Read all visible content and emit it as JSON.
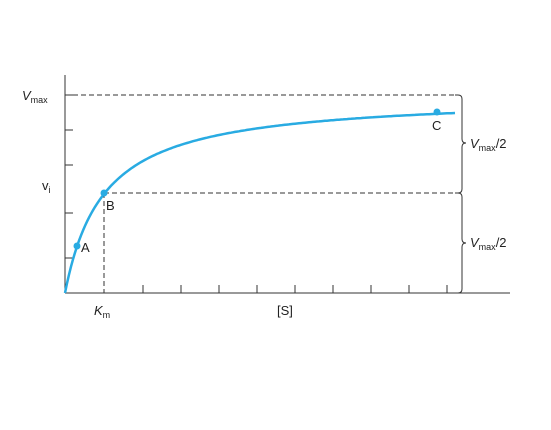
{
  "y_axis": {
    "vmax": {
      "symbol": "V",
      "sub": "max"
    },
    "vi": {
      "symbol": "v",
      "sub": "i"
    }
  },
  "x_axis": {
    "km": {
      "symbol": "K",
      "sub": "m"
    },
    "label": "[S]"
  },
  "points": [
    {
      "label": "A"
    },
    {
      "label": "B"
    },
    {
      "label": "C"
    }
  ],
  "brackets": [
    {
      "symbol": "V",
      "sub": "max",
      "suffix": "/2"
    },
    {
      "symbol": "V",
      "sub": "max",
      "suffix": "/2"
    }
  ]
}
